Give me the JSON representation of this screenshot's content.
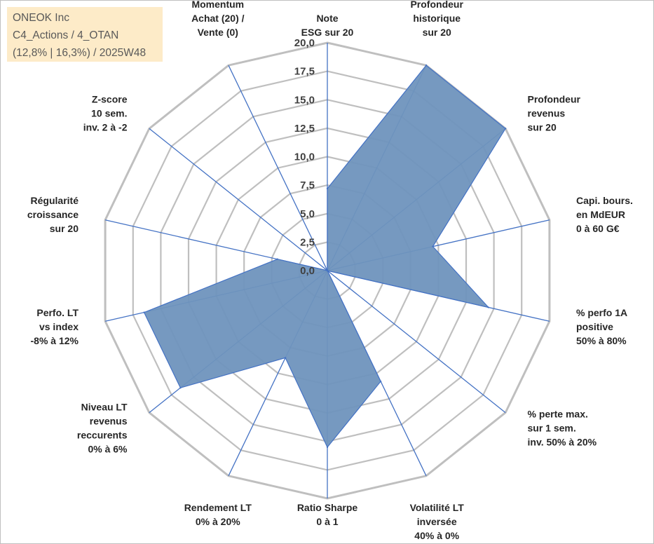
{
  "title_box": {
    "line1": "ONEOK Inc",
    "line2": "C4_Actions / 4_OTAN",
    "line3": "(12,8% | 16,3%) / 2025W48",
    "background": "#fdebc8"
  },
  "chart_data": {
    "type": "radar",
    "rmin": 0,
    "rmax": 20,
    "tick_labels": [
      "0,0",
      "2,5",
      "5,0",
      "7,5",
      "10,0",
      "12,5",
      "15,0",
      "17,5",
      "20,0"
    ],
    "tick_values": [
      0,
      2.5,
      5,
      7.5,
      10,
      12.5,
      15,
      17.5,
      20
    ],
    "axes": [
      {
        "lines": [
          "Note",
          "ESG sur 20"
        ]
      },
      {
        "lines": [
          "Profondeur",
          "historique",
          "sur 20"
        ]
      },
      {
        "lines": [
          "Profondeur",
          "revenus",
          "sur 20"
        ]
      },
      {
        "lines": [
          "Capi. bours.",
          "en MdEUR",
          "0 à 60 G€"
        ]
      },
      {
        "lines": [
          "% perfo 1A",
          "positive",
          "50% à 80%"
        ]
      },
      {
        "lines": [
          "% perte max.",
          "sur 1 sem.",
          "inv. 50% à 20%"
        ]
      },
      {
        "lines": [
          "Volatilité LT",
          "inversée",
          "40% à 0%"
        ]
      },
      {
        "lines": [
          "Ratio Sharpe",
          "0 à 1"
        ]
      },
      {
        "lines": [
          "Rendement LT",
          "0% à 20%"
        ]
      },
      {
        "lines": [
          "Niveau LT",
          "revenus",
          "reccurents",
          "0% à 6%"
        ]
      },
      {
        "lines": [
          "Perfo. LT",
          "vs index",
          "-8% à 12%"
        ]
      },
      {
        "lines": [
          "Régularité",
          "croissance",
          "sur 20"
        ]
      },
      {
        "lines": [
          "Z-score",
          "10 sem.",
          "inv. 2 à -2"
        ]
      },
      {
        "lines": [
          "Momentum",
          "Achat (20) /",
          "Vente (0)"
        ]
      }
    ],
    "series": [
      {
        "values": [
          7.2,
          20,
          20,
          9.5,
          14.5,
          0,
          10.8,
          15.5,
          8.5,
          16.5,
          16.5,
          4.5,
          0,
          0
        ],
        "fill": "#6f94bd",
        "stroke": "#4472c4"
      }
    ],
    "grid_color": "#bfbfbf",
    "spoke_color": "#4472c4"
  }
}
